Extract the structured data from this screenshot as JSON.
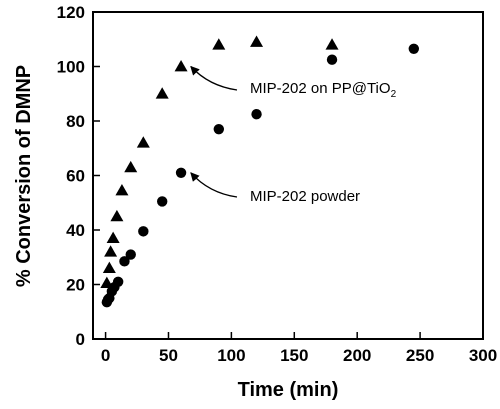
{
  "chart_data": {
    "type": "scatter",
    "xlabel": "Time (min)",
    "ylabel": "% Conversion of DMNP",
    "xlim": [
      -10,
      300
    ],
    "ylim": [
      0,
      120
    ],
    "xticks": [
      0,
      50,
      100,
      150,
      200,
      250,
      300
    ],
    "yticks": [
      0,
      20,
      40,
      60,
      80,
      100,
      120
    ],
    "grid": false,
    "series": [
      {
        "marker": "triangle",
        "color": "#000000",
        "points": [
          [
            1,
            20.5
          ],
          [
            3,
            26
          ],
          [
            4,
            32
          ],
          [
            6,
            37
          ],
          [
            9,
            45
          ],
          [
            13,
            54.5
          ],
          [
            20,
            63
          ],
          [
            30,
            72
          ],
          [
            45,
            90
          ],
          [
            60,
            100
          ],
          [
            90,
            108
          ],
          [
            120,
            109
          ],
          [
            180,
            108
          ]
        ]
      },
      {
        "marker": "circle",
        "color": "#000000",
        "points": [
          [
            1,
            13.5
          ],
          [
            2,
            14.5
          ],
          [
            3,
            15
          ],
          [
            5,
            17.5
          ],
          [
            7,
            19
          ],
          [
            10,
            21
          ],
          [
            15,
            28.5
          ],
          [
            20,
            31
          ],
          [
            30,
            39.5
          ],
          [
            45,
            50.5
          ],
          [
            60,
            61
          ],
          [
            90,
            77
          ],
          [
            120,
            82.5
          ],
          [
            180,
            102.5
          ],
          [
            245,
            106.5
          ]
        ]
      }
    ],
    "annotations": [
      {
        "text": "MIP-202 on PP@TiO",
        "sub": "2",
        "target": [
          63,
          100
        ]
      },
      {
        "text": "MIP-202 powder",
        "target": [
          63,
          61
        ]
      }
    ]
  }
}
